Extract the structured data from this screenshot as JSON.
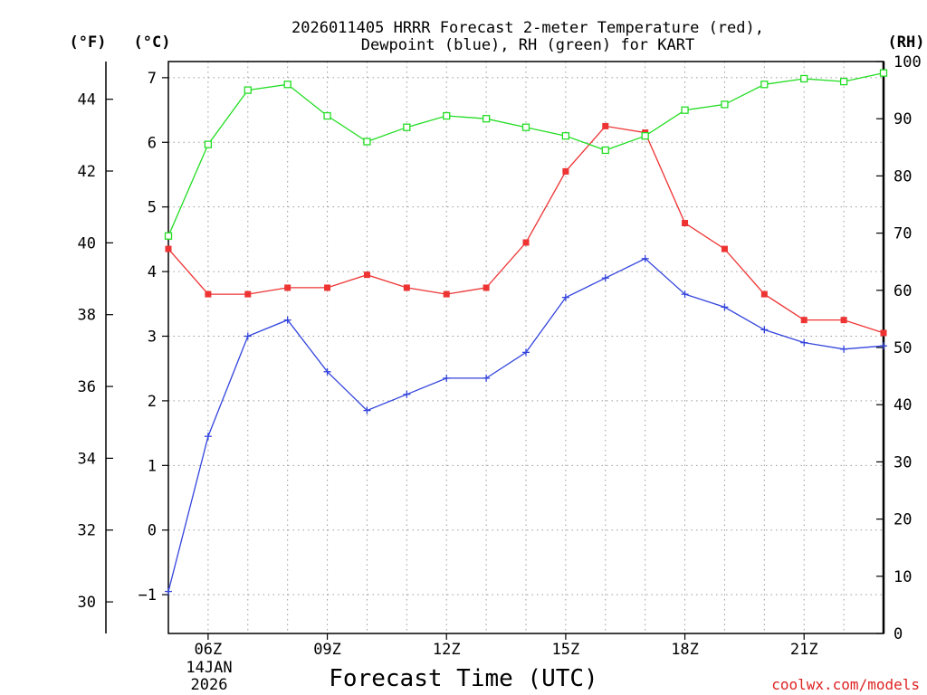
{
  "colors": {
    "temperature": "#ee3333",
    "dewpoint": "#3344dd",
    "rh": "#22dd22",
    "grid": "#999999",
    "credit": "#dd2222"
  },
  "chart_data": {
    "type": "line",
    "title_line1": "2026011405 HRRR Forecast 2-meter Temperature (red),",
    "title_line2": "Dewpoint (blue), RH (green) for KART",
    "xlabel": "Forecast Time (UTC)",
    "date_label_line1": "14JAN",
    "date_label_line2": "2026",
    "credit": "coolwx.com/models",
    "unit_f": "(°F)",
    "unit_c": "(°C)",
    "unit_rh": "(RH)",
    "x": [
      5,
      6,
      7,
      8,
      9,
      10,
      11,
      12,
      13,
      14,
      15,
      16,
      17,
      18,
      19,
      20,
      21,
      22,
      23
    ],
    "xlim": [
      5,
      23
    ],
    "x_ticks": [
      {
        "value": 6,
        "label": "06Z"
      },
      {
        "value": 9,
        "label": "09Z"
      },
      {
        "value": 12,
        "label": "12Z"
      },
      {
        "value": 15,
        "label": "15Z"
      },
      {
        "value": 18,
        "label": "18Z"
      },
      {
        "value": 21,
        "label": "21Z"
      }
    ],
    "ylim_c": [
      -1.6,
      7.25
    ],
    "y_ticks_c": [
      -1,
      0,
      1,
      2,
      3,
      4,
      5,
      6,
      7
    ],
    "y_ticks_f": [
      30,
      32,
      34,
      36,
      38,
      40,
      42,
      44
    ],
    "ylim_rh": [
      0,
      100
    ],
    "y_ticks_rh": [
      0,
      10,
      20,
      30,
      40,
      50,
      60,
      70,
      80,
      90,
      100
    ],
    "series": [
      {
        "name": "Temperature",
        "axis": "C",
        "marker": "filled-square",
        "values": [
          4.35,
          3.65,
          3.65,
          3.75,
          3.75,
          3.95,
          3.75,
          3.65,
          3.75,
          4.45,
          5.55,
          6.25,
          6.15,
          4.75,
          4.35,
          3.65,
          3.25,
          3.25,
          3.05
        ]
      },
      {
        "name": "Dewpoint",
        "axis": "C",
        "marker": "plus",
        "values": [
          -0.95,
          1.45,
          3.0,
          3.25,
          2.45,
          1.85,
          2.1,
          2.35,
          2.35,
          2.75,
          3.6,
          3.9,
          4.2,
          3.65,
          3.45,
          3.1,
          2.9,
          2.8,
          2.85
        ]
      },
      {
        "name": "RH",
        "axis": "RH",
        "marker": "open-square",
        "values": [
          69.5,
          85.5,
          95,
          96,
          90.5,
          86,
          88.5,
          90.5,
          90,
          88.5,
          87,
          84.5,
          87,
          91.5,
          92.5,
          96,
          97,
          96.5,
          98
        ]
      }
    ]
  }
}
